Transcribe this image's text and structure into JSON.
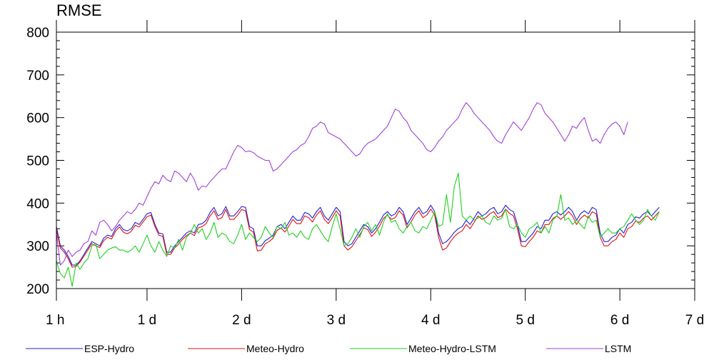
{
  "chart_data": {
    "type": "line",
    "title": "RMSE",
    "xlabel": "",
    "ylabel": "",
    "ylim": [
      200,
      800
    ],
    "yticks": [
      200,
      300,
      400,
      500,
      600,
      700,
      800
    ],
    "xlim": [
      0,
      162
    ],
    "x_ticks": [
      {
        "x": 0,
        "label": "1 h"
      },
      {
        "x": 23,
        "label": "1 d"
      },
      {
        "x": 47,
        "label": "2 d"
      },
      {
        "x": 71,
        "label": "3 d"
      },
      {
        "x": 95,
        "label": "4 d"
      },
      {
        "x": 119,
        "label": "5 d"
      },
      {
        "x": 143,
        "label": "6 d"
      },
      {
        "x": 162,
        "label": "7 d"
      }
    ],
    "x_step": 1,
    "grid": false,
    "legend": "bottom",
    "series": [
      {
        "name": "ESP-Hydro",
        "color": "#1f1fd6",
        "values": [
          345,
          300,
          290,
          275,
          255,
          255,
          265,
          280,
          295,
          310,
          305,
          300,
          318,
          325,
          322,
          340,
          350,
          338,
          335,
          340,
          355,
          350,
          362,
          375,
          378,
          350,
          330,
          328,
          285,
          285,
          300,
          310,
          320,
          330,
          335,
          330,
          350,
          352,
          360,
          378,
          390,
          370,
          375,
          392,
          370,
          370,
          380,
          392,
          390,
          345,
          340,
          300,
          300,
          312,
          318,
          325,
          345,
          350,
          340,
          355,
          370,
          360,
          360,
          378,
          375,
          365,
          380,
          390,
          370,
          360,
          375,
          390,
          380,
          310,
          300,
          305,
          320,
          335,
          350,
          345,
          330,
          340,
          355,
          372,
          380,
          370,
          375,
          390,
          380,
          350,
          365,
          380,
          390,
          375,
          380,
          395,
          380,
          330,
          305,
          310,
          320,
          332,
          340,
          345,
          360,
          350,
          365,
          380,
          370,
          375,
          385,
          390,
          375,
          380,
          395,
          385,
          380,
          350,
          310,
          310,
          320,
          330,
          345,
          340,
          360,
          360,
          375,
          380,
          372,
          380,
          390,
          380,
          360,
          375,
          382,
          375,
          390,
          385,
          330,
          310,
          310,
          320,
          325,
          340,
          330,
          350,
          355,
          368,
          365,
          375,
          380,
          370,
          380,
          390
        ]
      },
      {
        "name": "Meteo-Hydro",
        "color": "#e01010",
        "values": [
          338,
          295,
          285,
          270,
          250,
          252,
          262,
          276,
          290,
          305,
          300,
          296,
          312,
          320,
          316,
          334,
          344,
          332,
          328,
          334,
          348,
          344,
          356,
          368,
          372,
          345,
          325,
          322,
          280,
          280,
          295,
          304,
          315,
          324,
          330,
          324,
          342,
          345,
          352,
          370,
          382,
          362,
          366,
          385,
          362,
          362,
          372,
          385,
          382,
          338,
          332,
          288,
          290,
          305,
          310,
          318,
          336,
          342,
          332,
          346,
          362,
          352,
          352,
          370,
          366,
          356,
          372,
          382,
          362,
          352,
          366,
          382,
          370,
          300,
          290,
          298,
          312,
          326,
          342,
          338,
          322,
          332,
          346,
          364,
          372,
          362,
          366,
          382,
          372,
          342,
          356,
          372,
          382,
          366,
          372,
          386,
          372,
          320,
          290,
          295,
          310,
          322,
          330,
          335,
          350,
          340,
          355,
          370,
          362,
          366,
          375,
          380,
          366,
          370,
          386,
          376,
          370,
          340,
          300,
          298,
          310,
          320,
          335,
          330,
          350,
          350,
          364,
          370,
          362,
          370,
          380,
          370,
          350,
          364,
          372,
          365,
          380,
          375,
          320,
          300,
          300,
          310,
          315,
          330,
          320,
          340,
          345,
          358,
          355,
          365,
          370,
          360,
          370,
          380
        ]
      },
      {
        "name": "Meteo-Hydro-LSTM",
        "color": "#20d020",
        "values": [
          265,
          235,
          225,
          250,
          205,
          260,
          245,
          260,
          270,
          300,
          305,
          270,
          280,
          290,
          295,
          298,
          290,
          290,
          285,
          290,
          300,
          285,
          305,
          325,
          300,
          285,
          310,
          290,
          275,
          300,
          295,
          315,
          290,
          320,
          330,
          350,
          330,
          340,
          315,
          330,
          355,
          320,
          330,
          325,
          310,
          305,
          325,
          350,
          315,
          330,
          320,
          310,
          320,
          345,
          330,
          320,
          345,
          340,
          355,
          325,
          330,
          320,
          335,
          320,
          315,
          340,
          350,
          335,
          320,
          310,
          345,
          375,
          340,
          300,
          305,
          320,
          340,
          320,
          345,
          355,
          335,
          350,
          325,
          355,
          375,
          355,
          360,
          340,
          330,
          345,
          355,
          335,
          330,
          345,
          340,
          360,
          380,
          345,
          350,
          420,
          355,
          440,
          470,
          370,
          360,
          370,
          360,
          365,
          370,
          355,
          350,
          370,
          360,
          365,
          385,
          345,
          340,
          350,
          330,
          320,
          340,
          345,
          355,
          330,
          345,
          330,
          360,
          370,
          420,
          360,
          365,
          350,
          360,
          350,
          340,
          370,
          355,
          360,
          320,
          330,
          340,
          330,
          330,
          340,
          345,
          360,
          375,
          360,
          350,
          360,
          385,
          370,
          360,
          380
        ]
      },
      {
        "name": "LSTM",
        "color": "#a040d8",
        "values": [
          330,
          255,
          265,
          290,
          275,
          285,
          290,
          305,
          310,
          335,
          325,
          355,
          360,
          350,
          335,
          345,
          360,
          370,
          380,
          375,
          385,
          400,
          395,
          415,
          435,
          450,
          445,
          465,
          455,
          450,
          475,
          470,
          460,
          450,
          470,
          455,
          430,
          440,
          438,
          450,
          460,
          470,
          480,
          480,
          500,
          520,
          535,
          530,
          520,
          522,
          518,
          510,
          505,
          500,
          500,
          475,
          480,
          490,
          500,
          510,
          520,
          525,
          535,
          540,
          555,
          575,
          580,
          590,
          585,
          565,
          560,
          555,
          550,
          540,
          530,
          520,
          510,
          515,
          530,
          540,
          545,
          550,
          560,
          570,
          580,
          600,
          620,
          615,
          600,
          590,
          570,
          560,
          550,
          540,
          525,
          520,
          530,
          545,
          555,
          570,
          580,
          590,
          600,
          620,
          635,
          625,
          610,
          600,
          590,
          580,
          570,
          555,
          545,
          540,
          560,
          575,
          590,
          580,
          570,
          585,
          600,
          620,
          635,
          630,
          610,
          600,
          590,
          575,
          560,
          545,
          560,
          580,
          575,
          590,
          600,
          570,
          545,
          550,
          540,
          560,
          575,
          585,
          590,
          580,
          560,
          590
        ]
      }
    ]
  }
}
